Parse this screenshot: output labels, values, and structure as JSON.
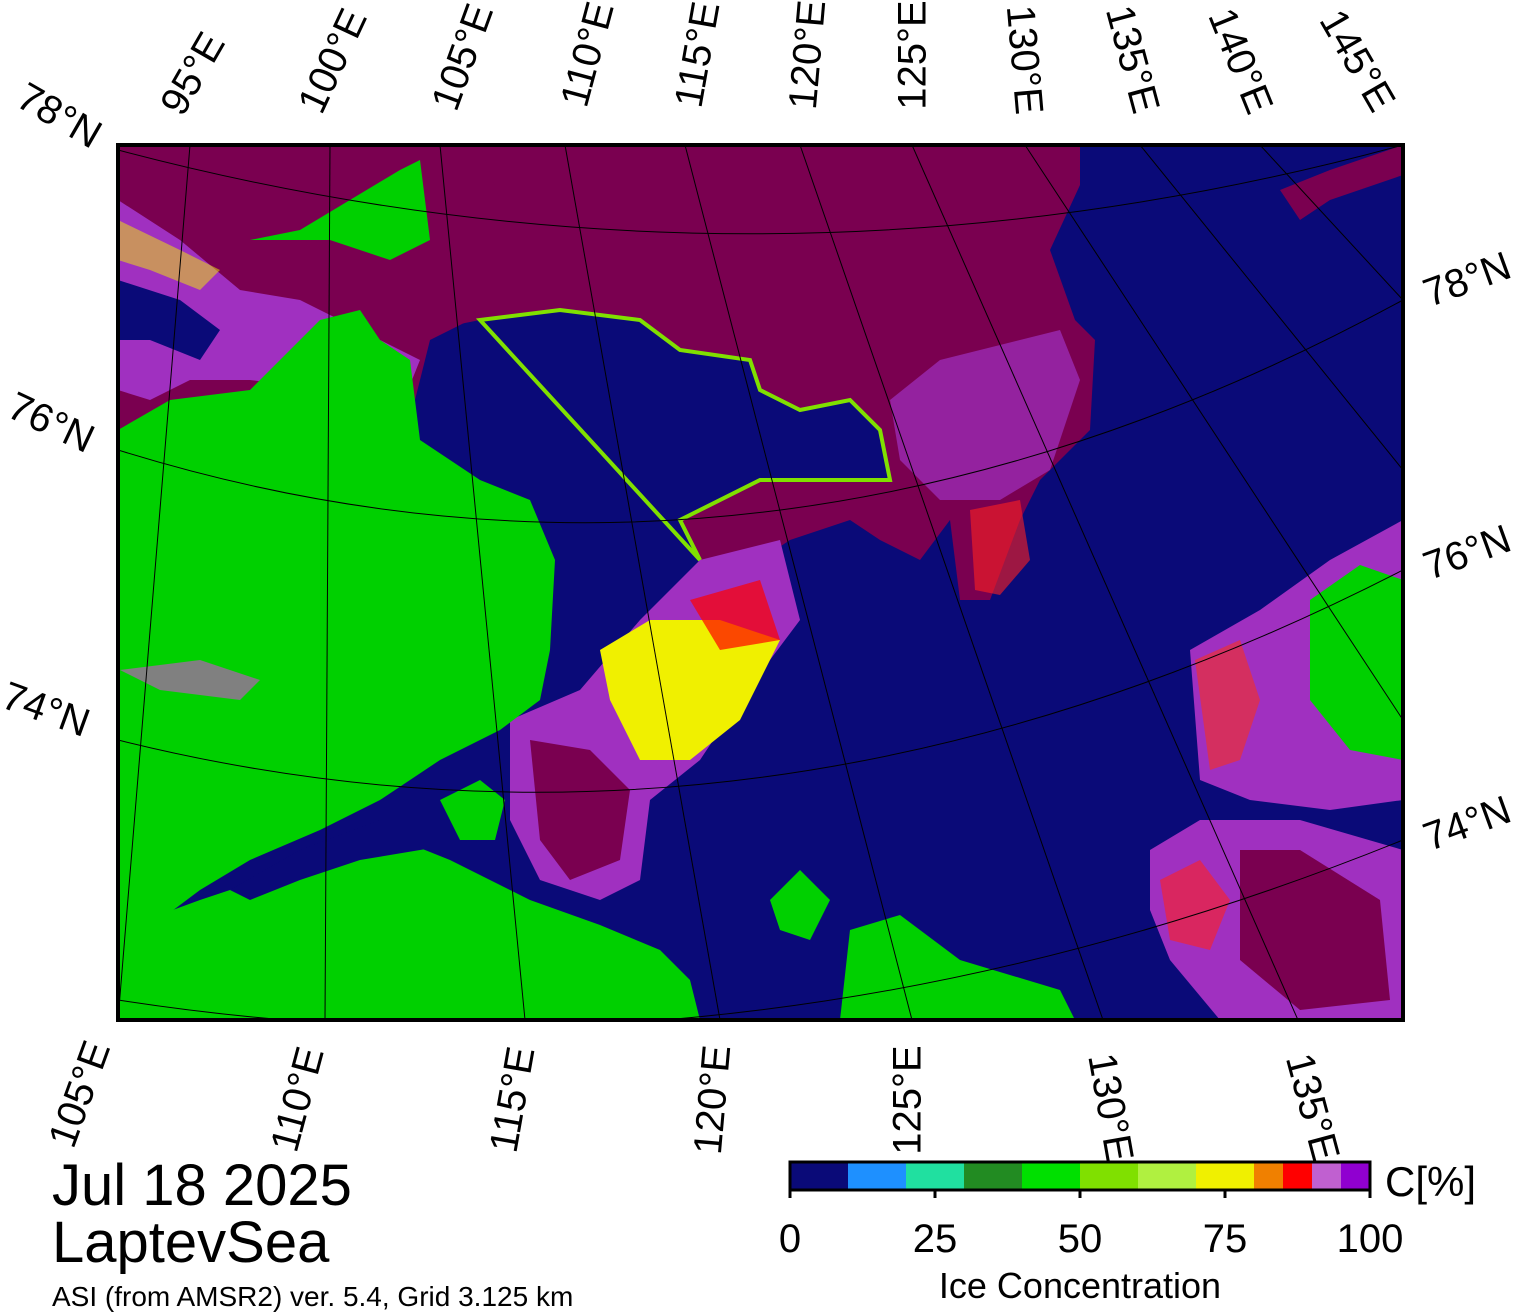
{
  "header": {
    "date": "Jul 18 2025",
    "region": "LaptevSea",
    "source": "ASI (from AMSR2) ver. 5.4,  Grid 3.125 km"
  },
  "map": {
    "top_lon_labels": [
      "95°E",
      "100°E",
      "105°E",
      "110°E",
      "115°E",
      "120°E",
      "125°E",
      "130°E",
      "135°E",
      "140°E",
      "145°E"
    ],
    "left_lat_labels": [
      "78°N",
      "76°N",
      "74°N"
    ],
    "right_lat_labels": [
      "78°N",
      "76°N",
      "74°N"
    ],
    "bottom_lon_labels": [
      "105°E",
      "110°E",
      "115°E",
      "120°E",
      "125°E",
      "130°E",
      "135°E"
    ]
  },
  "colorbar": {
    "title": "Ice Concentration",
    "unit": "C[%]",
    "range": [
      0,
      100
    ],
    "bounds": [
      0,
      10,
      20,
      30,
      40,
      50,
      60,
      70,
      80,
      85,
      90,
      95,
      100
    ],
    "colors": [
      "#0a0a78",
      "#1e90ff",
      "#20e0a0",
      "#228b22",
      "#00e000",
      "#80e000",
      "#b0f040",
      "#f0f000",
      "#f08000",
      "#ff0000",
      "#c060d0",
      "#9000d0"
    ],
    "ticks": [
      0,
      25,
      50,
      75,
      100
    ]
  }
}
